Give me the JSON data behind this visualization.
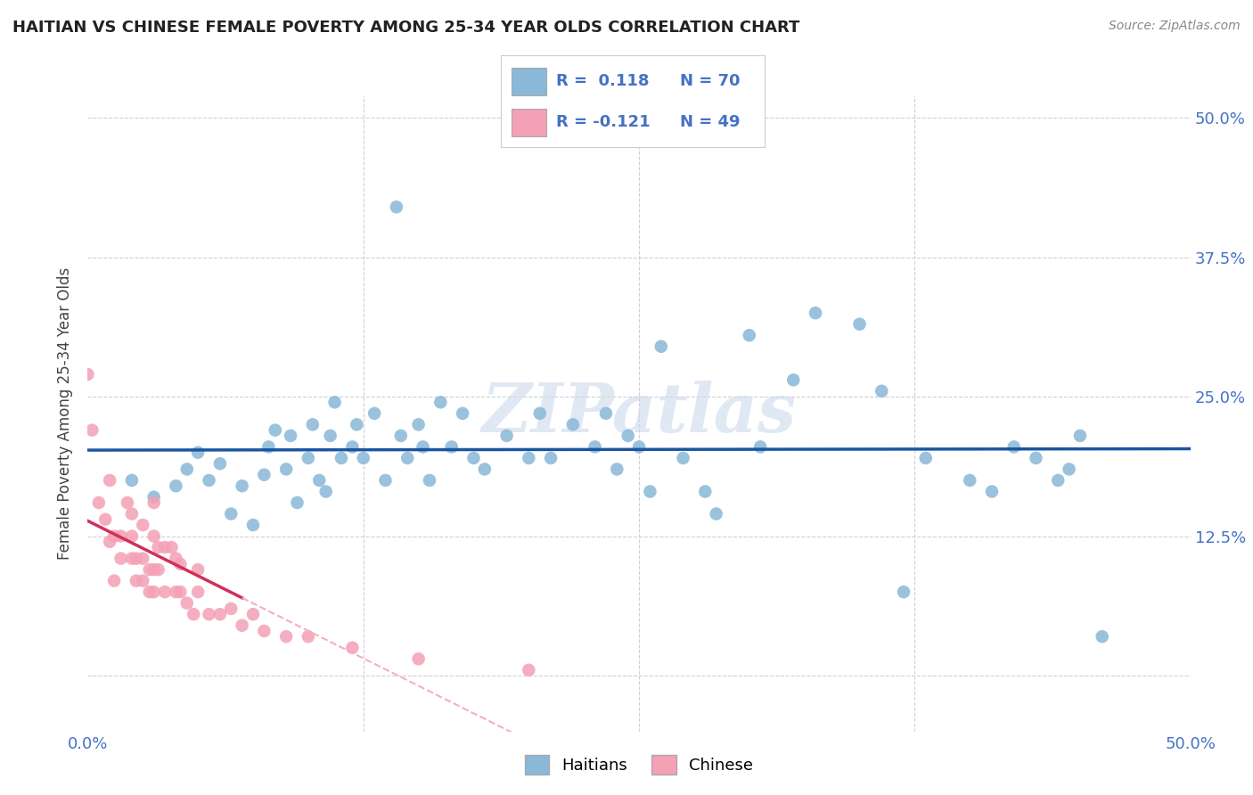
{
  "title": "HAITIAN VS CHINESE FEMALE POVERTY AMONG 25-34 YEAR OLDS CORRELATION CHART",
  "source": "Source: ZipAtlas.com",
  "ylabel": "Female Poverty Among 25-34 Year Olds",
  "xlim": [
    0.0,
    0.5
  ],
  "ylim": [
    -0.05,
    0.52
  ],
  "haitian_color": "#89b8d8",
  "chinese_color": "#f4a0b5",
  "haitian_line_color": "#1a56a0",
  "chinese_line_color": "#d0305a",
  "chinese_line_dashed_color": "#f0b0c0",
  "R_haitian": "0.118",
  "N_haitian": "70",
  "R_chinese": "-0.121",
  "N_chinese": "49",
  "legend_labels": [
    "Haitians",
    "Chinese"
  ],
  "watermark": "ZIPatlas",
  "haitian_x": [
    0.02,
    0.03,
    0.04,
    0.045,
    0.05,
    0.055,
    0.06,
    0.065,
    0.07,
    0.075,
    0.08,
    0.082,
    0.085,
    0.09,
    0.092,
    0.095,
    0.1,
    0.102,
    0.105,
    0.108,
    0.11,
    0.112,
    0.115,
    0.12,
    0.122,
    0.125,
    0.13,
    0.135,
    0.14,
    0.142,
    0.145,
    0.15,
    0.152,
    0.155,
    0.16,
    0.165,
    0.17,
    0.175,
    0.18,
    0.19,
    0.2,
    0.205,
    0.21,
    0.22,
    0.23,
    0.235,
    0.24,
    0.245,
    0.25,
    0.255,
    0.26,
    0.27,
    0.28,
    0.285,
    0.3,
    0.305,
    0.32,
    0.33,
    0.35,
    0.36,
    0.37,
    0.38,
    0.4,
    0.41,
    0.42,
    0.43,
    0.44,
    0.445,
    0.45,
    0.46
  ],
  "haitian_y": [
    0.175,
    0.16,
    0.17,
    0.185,
    0.2,
    0.175,
    0.19,
    0.145,
    0.17,
    0.135,
    0.18,
    0.205,
    0.22,
    0.185,
    0.215,
    0.155,
    0.195,
    0.225,
    0.175,
    0.165,
    0.215,
    0.245,
    0.195,
    0.205,
    0.225,
    0.195,
    0.235,
    0.175,
    0.42,
    0.215,
    0.195,
    0.225,
    0.205,
    0.175,
    0.245,
    0.205,
    0.235,
    0.195,
    0.185,
    0.215,
    0.195,
    0.235,
    0.195,
    0.225,
    0.205,
    0.235,
    0.185,
    0.215,
    0.205,
    0.165,
    0.295,
    0.195,
    0.165,
    0.145,
    0.305,
    0.205,
    0.265,
    0.325,
    0.315,
    0.255,
    0.075,
    0.195,
    0.175,
    0.165,
    0.205,
    0.195,
    0.175,
    0.185,
    0.215,
    0.035
  ],
  "chinese_x": [
    0.0,
    0.002,
    0.005,
    0.008,
    0.01,
    0.01,
    0.012,
    0.012,
    0.015,
    0.015,
    0.018,
    0.02,
    0.02,
    0.02,
    0.022,
    0.022,
    0.025,
    0.025,
    0.025,
    0.028,
    0.028,
    0.03,
    0.03,
    0.03,
    0.03,
    0.032,
    0.032,
    0.035,
    0.035,
    0.038,
    0.04,
    0.04,
    0.042,
    0.042,
    0.045,
    0.048,
    0.05,
    0.05,
    0.055,
    0.06,
    0.065,
    0.07,
    0.075,
    0.08,
    0.09,
    0.1,
    0.12,
    0.15,
    0.2
  ],
  "chinese_y": [
    0.27,
    0.22,
    0.155,
    0.14,
    0.12,
    0.175,
    0.085,
    0.125,
    0.105,
    0.125,
    0.155,
    0.105,
    0.125,
    0.145,
    0.085,
    0.105,
    0.085,
    0.105,
    0.135,
    0.075,
    0.095,
    0.075,
    0.095,
    0.125,
    0.155,
    0.095,
    0.115,
    0.075,
    0.115,
    0.115,
    0.075,
    0.105,
    0.075,
    0.1,
    0.065,
    0.055,
    0.075,
    0.095,
    0.055,
    0.055,
    0.06,
    0.045,
    0.055,
    0.04,
    0.035,
    0.035,
    0.025,
    0.015,
    0.005
  ]
}
